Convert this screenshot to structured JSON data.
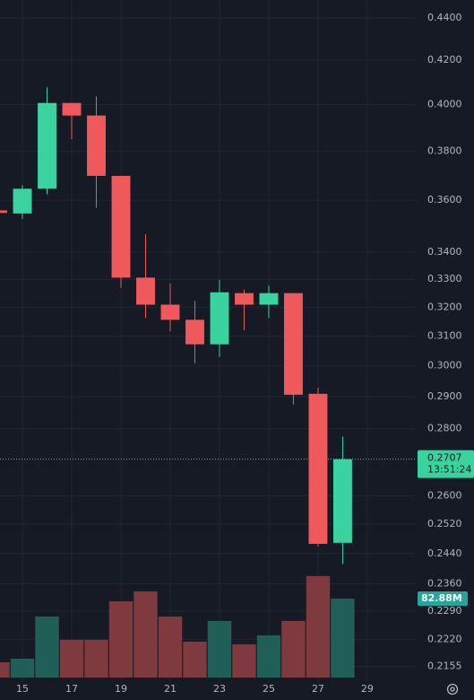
{
  "chart_data": {
    "type": "candlestick",
    "x": [
      14,
      15,
      16,
      17,
      18,
      19,
      20,
      21,
      22,
      23,
      24,
      25,
      26,
      27,
      28
    ],
    "open": [
      0.356,
      0.3548,
      0.3646,
      0.4007,
      0.3952,
      0.3698,
      0.3306,
      0.3209,
      0.3156,
      0.3072,
      0.325,
      0.3209,
      0.325,
      0.2909,
      0.2469
    ],
    "high": [
      0.3565,
      0.366,
      0.4077,
      0.4007,
      0.4036,
      0.3698,
      0.3468,
      0.3285,
      0.3222,
      0.3297,
      0.3263,
      0.3277,
      0.325,
      0.2929,
      0.2775
    ],
    "low": [
      0.3545,
      0.3527,
      0.3624,
      0.385,
      0.357,
      0.3269,
      0.3162,
      0.3117,
      0.3009,
      0.303,
      0.312,
      0.3162,
      0.2875,
      0.2459,
      0.2412
    ],
    "close": [
      0.355,
      0.3646,
      0.4007,
      0.3952,
      0.3698,
      0.3306,
      0.3209,
      0.3156,
      0.3072,
      0.3253,
      0.3209,
      0.325,
      0.2906,
      0.2466,
      0.2707
    ],
    "up_color": "#3ad29f",
    "down_color": "#f0595b",
    "log_scale": true,
    "grid": true,
    "ylim": [
      0.2118,
      0.4488
    ],
    "yticks": [
      {
        "value": 0.44,
        "label": "0.4400"
      },
      {
        "value": 0.42,
        "label": "0.4200"
      },
      {
        "value": 0.4,
        "label": "0.4000"
      },
      {
        "value": 0.38,
        "label": "0.3800"
      },
      {
        "value": 0.36,
        "label": "0.3600"
      },
      {
        "value": 0.34,
        "label": "0.3400"
      },
      {
        "value": 0.33,
        "label": "0.3300"
      },
      {
        "value": 0.32,
        "label": "0.3200"
      },
      {
        "value": 0.31,
        "label": "0.3100"
      },
      {
        "value": 0.3,
        "label": "0.3000"
      },
      {
        "value": 0.29,
        "label": "0.2900"
      },
      {
        "value": 0.28,
        "label": "0.2800"
      },
      {
        "value": 0.26,
        "label": "0.2600"
      },
      {
        "value": 0.252,
        "label": "0.2520"
      },
      {
        "value": 0.244,
        "label": "0.2440"
      },
      {
        "value": 0.236,
        "label": "0.2360"
      },
      {
        "value": 0.229,
        "label": "0.2290"
      },
      {
        "value": 0.222,
        "label": "0.2220"
      },
      {
        "value": 0.2155,
        "label": "0.2155"
      }
    ],
    "xlim": [
      14.09,
      30.93
    ],
    "xticks": [
      15,
      17,
      19,
      21,
      23,
      25,
      27,
      29
    ],
    "countdown": "13:51:24",
    "volume": {
      "values": [
        16,
        19.8,
        64,
        39.6,
        39.6,
        80,
        90.4,
        64,
        37.7,
        59.4,
        34.9,
        44.3,
        59.4,
        106.5,
        82.88
      ],
      "value_labels": [
        null,
        null,
        null,
        null,
        null,
        null,
        null,
        null,
        null,
        null,
        null,
        null,
        null,
        null,
        "82.88M"
      ],
      "ylim": [
        0,
        240
      ],
      "up_color": "#1f5f57",
      "down_color": "#7e3a3e"
    }
  }
}
